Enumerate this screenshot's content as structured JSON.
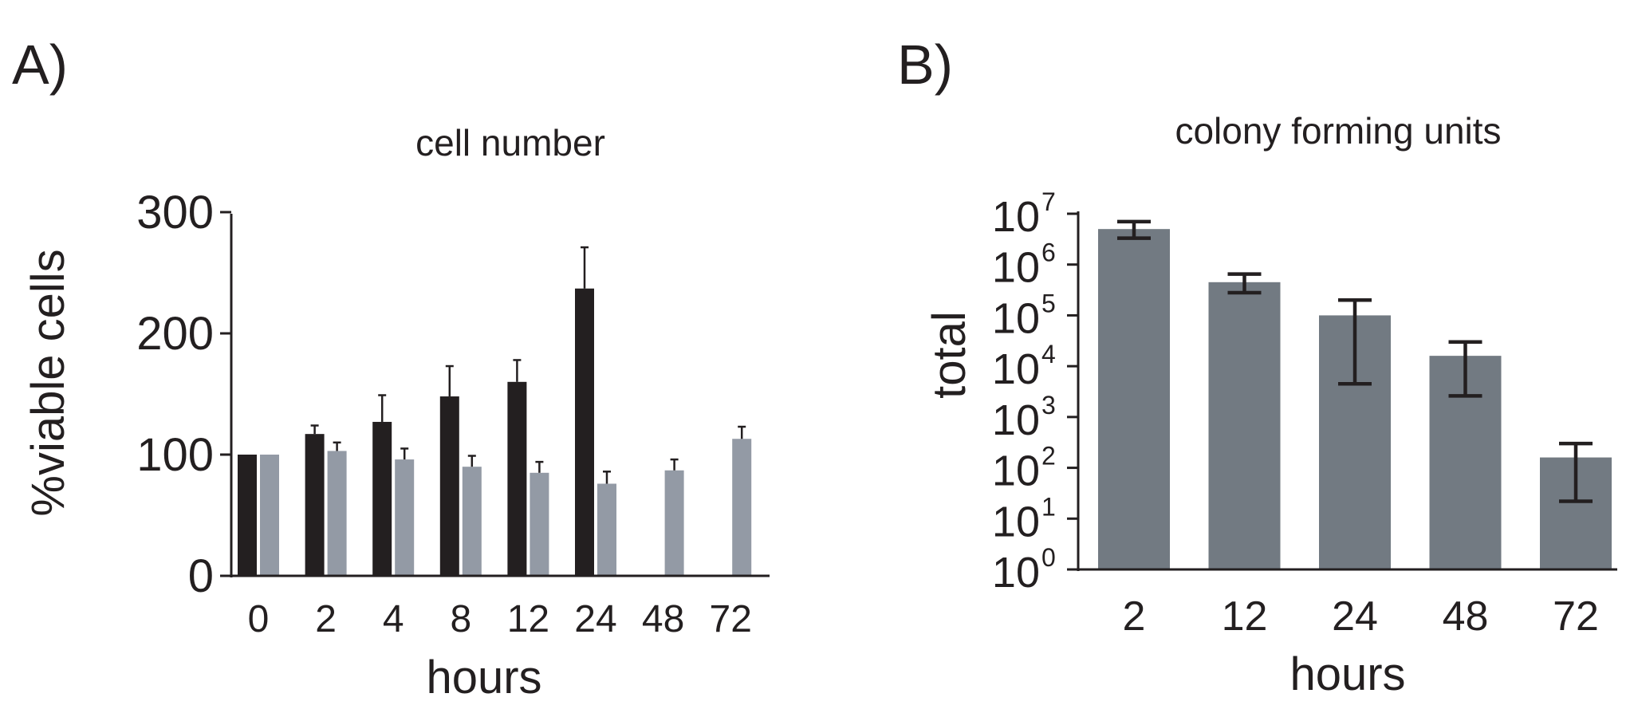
{
  "panels": {
    "a_label": "A)",
    "b_label": "B)"
  },
  "chart_data": [
    {
      "type": "bar",
      "title": "cell number",
      "xlabel": "hours",
      "ylabel": "%viable cells",
      "ylim": [
        0,
        300
      ],
      "yticks": [
        "0",
        "100",
        "200",
        "300"
      ],
      "categories": [
        "0",
        "2",
        "4",
        "8",
        "12",
        "24",
        "48",
        "72"
      ],
      "series": [
        {
          "color": "#231f20",
          "values": [
            100,
            117,
            127,
            148,
            160,
            237,
            null,
            null
          ],
          "errors": [
            0,
            7,
            22,
            25,
            18,
            34,
            null,
            null
          ]
        },
        {
          "color": "#939aa5",
          "values": [
            100,
            103,
            96,
            90,
            85,
            76,
            87,
            113
          ],
          "errors": [
            0,
            7,
            9,
            9,
            9,
            10,
            9,
            10
          ]
        }
      ],
      "grid": false
    },
    {
      "type": "bar",
      "title": "colony forming units",
      "xlabel": "hours",
      "ylabel": "total",
      "yscale": "log",
      "ylim": [
        1,
        10000000
      ],
      "yticks": [
        {
          "base": "10",
          "exp": "0"
        },
        {
          "base": "10",
          "exp": "1"
        },
        {
          "base": "10",
          "exp": "2"
        },
        {
          "base": "10",
          "exp": "3"
        },
        {
          "base": "10",
          "exp": "4"
        },
        {
          "base": "10",
          "exp": "5"
        },
        {
          "base": "10",
          "exp": "6"
        },
        {
          "base": "10",
          "exp": "7"
        }
      ],
      "categories": [
        "2",
        "12",
        "24",
        "48",
        "72"
      ],
      "series": [
        {
          "color": "#727a82",
          "values": [
            5000000,
            450000,
            100000,
            16000,
            160
          ],
          "err_low": [
            3300000,
            280000,
            4500,
            2600,
            22
          ],
          "err_high": [
            7000000,
            650000,
            200000,
            30000,
            300
          ]
        }
      ],
      "grid": false
    }
  ]
}
